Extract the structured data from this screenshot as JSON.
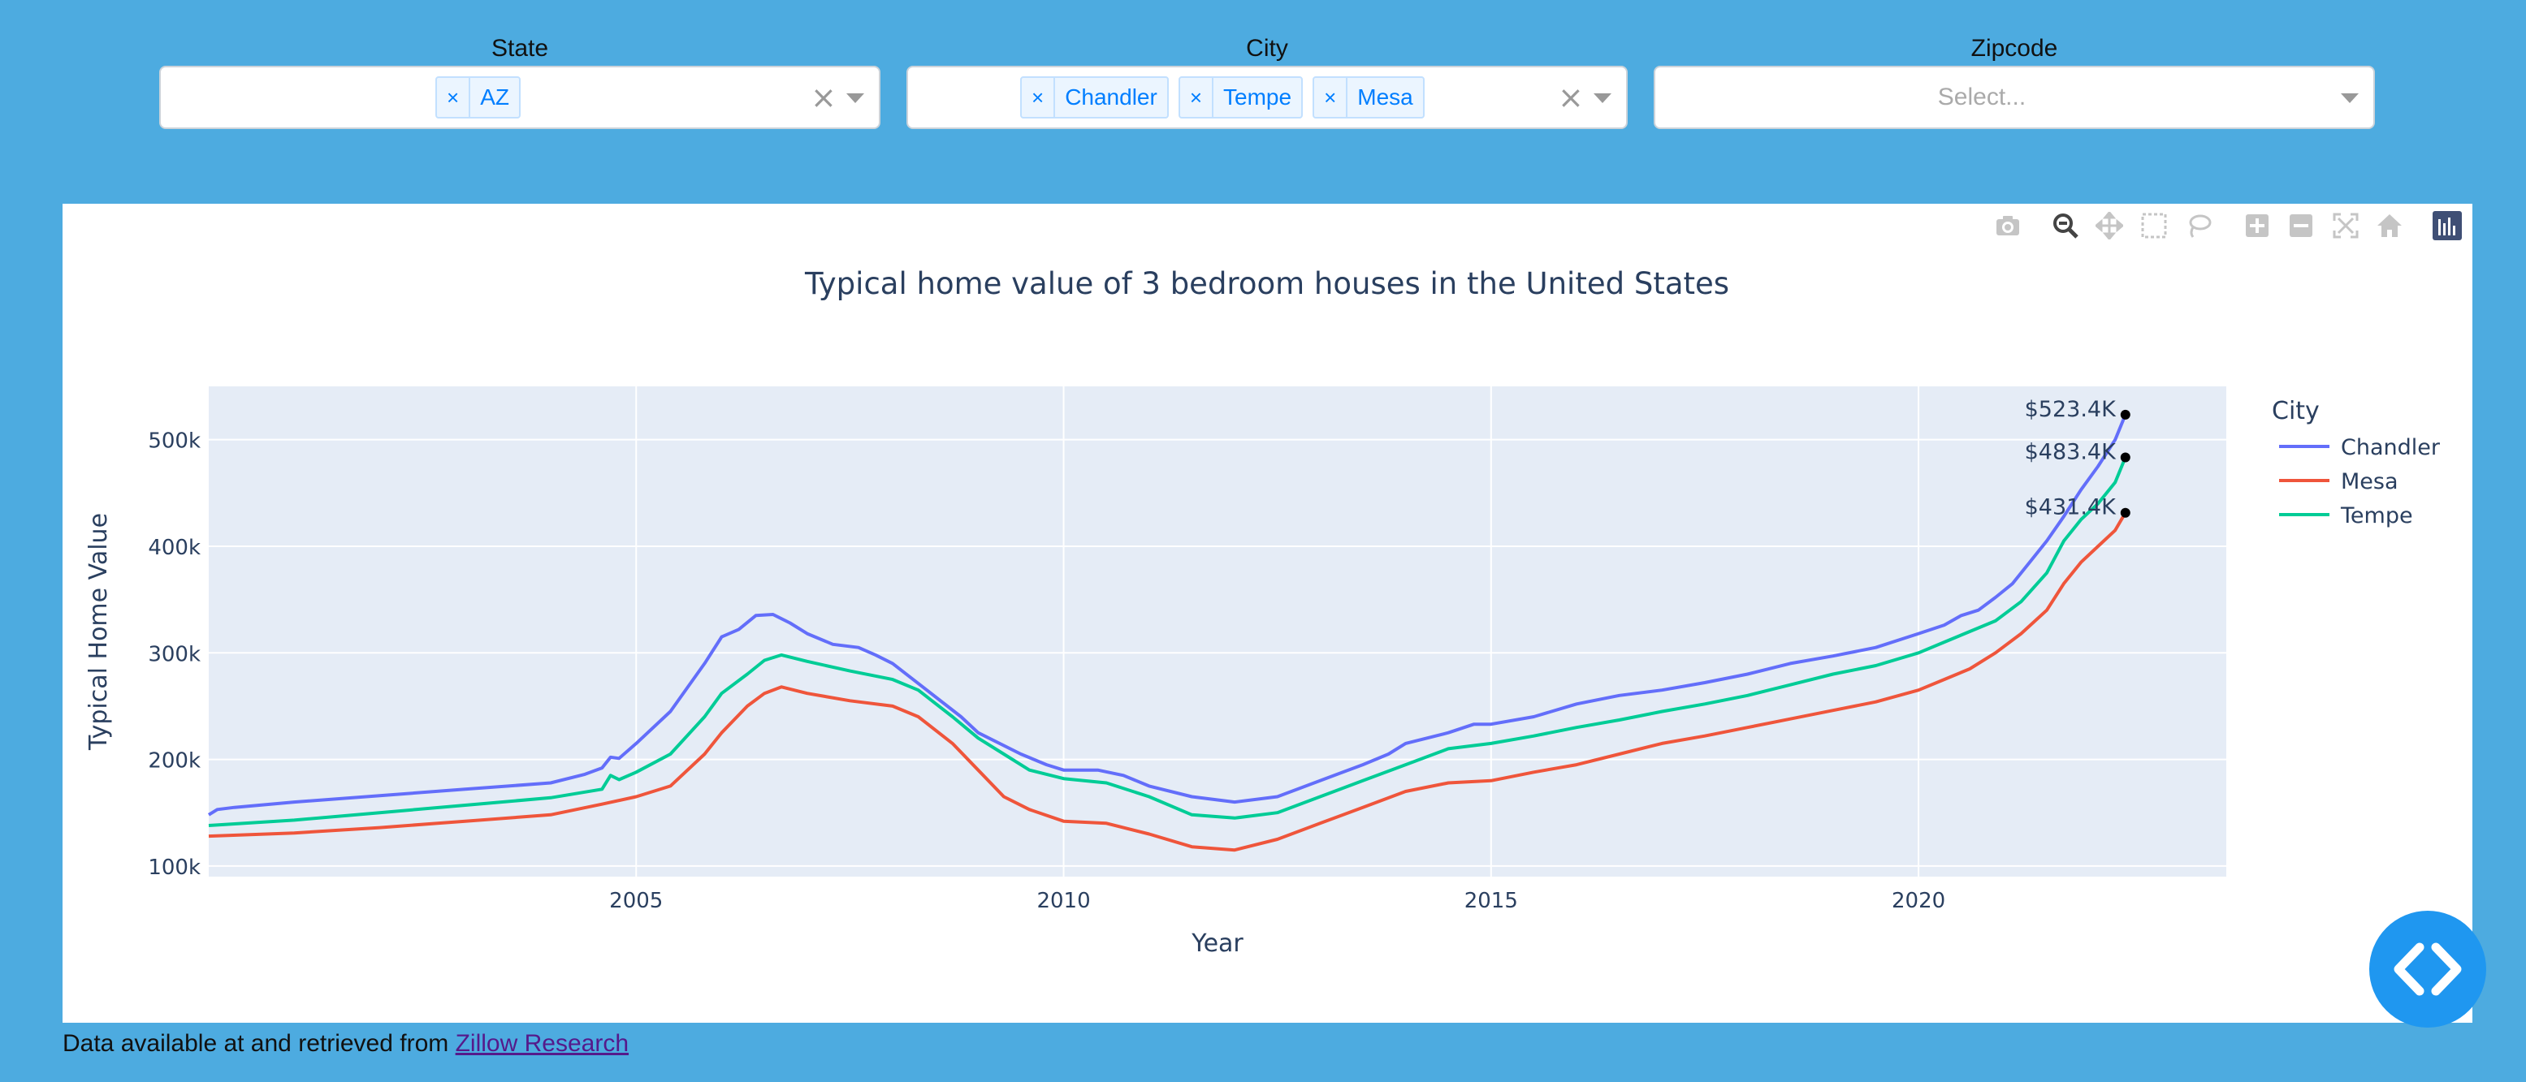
{
  "filters": {
    "state": {
      "label": "State",
      "chips": [
        "AZ"
      ],
      "remove_glyph": "×",
      "clear_glyph": "×"
    },
    "city": {
      "label": "City",
      "chips": [
        "Chandler",
        "Tempe",
        "Mesa"
      ],
      "remove_glyph": "×",
      "clear_glyph": "×"
    },
    "zipcode": {
      "label": "Zipcode",
      "placeholder": "Select..."
    }
  },
  "modebar": {
    "icons": [
      "camera-icon",
      "zoom-icon",
      "pan-icon",
      "box-select-icon",
      "lasso-select-icon",
      "zoom-in-icon",
      "zoom-out-icon",
      "autoscale-icon",
      "reset-axes-icon",
      "plotly-logo-icon"
    ],
    "active": "zoom-icon"
  },
  "chart_data": {
    "type": "line",
    "title": "Typical home value of 3 bedroom houses in the United States",
    "xlabel": "Year",
    "ylabel": "Typical Home Value",
    "xlim": [
      2000.0,
      2023.6
    ],
    "ylim": [
      90000,
      550000
    ],
    "x_ticks": [
      2005,
      2010,
      2015,
      2020
    ],
    "x_tick_labels": [
      "2005",
      "2010",
      "2015",
      "2020"
    ],
    "y_ticks": [
      100000,
      200000,
      300000,
      400000,
      500000
    ],
    "y_tick_labels": [
      "100k",
      "200k",
      "300k",
      "400k",
      "500k"
    ],
    "grid": true,
    "legend": {
      "title": "City",
      "position": "top-right"
    },
    "series": [
      {
        "name": "Chandler",
        "color": "#636efa",
        "x": [
          2000.0,
          2000.1,
          2000.3,
          2001,
          2002,
          2003,
          2004,
          2004.4,
          2004.6,
          2004.7,
          2004.8,
          2005,
          2005.4,
          2005.8,
          2006.0,
          2006.2,
          2006.4,
          2006.6,
          2006.8,
          2007,
          2007.3,
          2007.6,
          2007.8,
          2008,
          2008.4,
          2008.8,
          2009,
          2009.5,
          2009.8,
          2010,
          2010.4,
          2010.7,
          2011,
          2011.5,
          2012,
          2012.5,
          2013,
          2013.5,
          2013.8,
          2014,
          2014.5,
          2014.8,
          2015,
          2015.5,
          2016,
          2016.5,
          2017,
          2017.5,
          2018,
          2018.5,
          2019,
          2019.5,
          2020,
          2020.3,
          2020.5,
          2020.7,
          2020.9,
          2021.1,
          2021.3,
          2021.5,
          2021.7,
          2021.9,
          2022.1,
          2022.3,
          2022.42
        ],
        "y": [
          148000,
          153000,
          155000,
          160000,
          166000,
          172000,
          178000,
          186000,
          192000,
          202000,
          201000,
          215000,
          245000,
          290000,
          315000,
          322000,
          335000,
          336000,
          328000,
          318000,
          308000,
          305000,
          298000,
          290000,
          265000,
          240000,
          225000,
          205000,
          195000,
          190000,
          190000,
          185000,
          175000,
          165000,
          160000,
          165000,
          180000,
          195000,
          205000,
          215000,
          225000,
          233000,
          233000,
          240000,
          252000,
          260000,
          265000,
          272000,
          280000,
          290000,
          297000,
          305000,
          318000,
          326000,
          335000,
          340000,
          352000,
          365000,
          385000,
          405000,
          428000,
          453000,
          475000,
          500000,
          523400
        ]
      },
      {
        "name": "Mesa",
        "color": "#ef553b",
        "x": [
          2000.0,
          2001,
          2002,
          2003,
          2004,
          2004.6,
          2005,
          2005.4,
          2005.8,
          2006.0,
          2006.3,
          2006.5,
          2006.7,
          2007,
          2007.5,
          2008,
          2008.3,
          2008.7,
          2009,
          2009.3,
          2009.6,
          2010,
          2010.5,
          2011,
          2011.5,
          2012,
          2012.5,
          2013,
          2013.5,
          2014,
          2014.5,
          2015,
          2015.5,
          2016,
          2016.5,
          2017,
          2017.5,
          2018,
          2018.5,
          2019,
          2019.5,
          2020,
          2020.3,
          2020.6,
          2020.9,
          2021.2,
          2021.5,
          2021.7,
          2021.9,
          2022.1,
          2022.3,
          2022.42
        ],
        "y": [
          128000,
          131000,
          136000,
          142000,
          148000,
          158000,
          165000,
          175000,
          205000,
          225000,
          250000,
          262000,
          268000,
          262000,
          255000,
          250000,
          240000,
          215000,
          190000,
          165000,
          153000,
          142000,
          140000,
          130000,
          118000,
          115000,
          125000,
          140000,
          155000,
          170000,
          178000,
          180000,
          188000,
          195000,
          205000,
          215000,
          222000,
          230000,
          238000,
          246000,
          254000,
          265000,
          275000,
          285000,
          300000,
          318000,
          340000,
          365000,
          385000,
          400000,
          415000,
          431400
        ]
      },
      {
        "name": "Tempe",
        "color": "#00cc96",
        "x": [
          2000.0,
          2001,
          2002,
          2003,
          2004,
          2004.6,
          2004.7,
          2004.8,
          2005,
          2005.4,
          2005.8,
          2006.0,
          2006.3,
          2006.5,
          2006.7,
          2007,
          2007.5,
          2008,
          2008.3,
          2008.7,
          2009,
          2009.3,
          2009.6,
          2010,
          2010.5,
          2011,
          2011.5,
          2012,
          2012.5,
          2013,
          2013.5,
          2014,
          2014.5,
          2015,
          2015.5,
          2016,
          2016.5,
          2017,
          2017.5,
          2018,
          2018.5,
          2019,
          2019.5,
          2020,
          2020.3,
          2020.6,
          2020.9,
          2021.2,
          2021.5,
          2021.7,
          2021.9,
          2022.1,
          2022.3,
          2022.42
        ],
        "y": [
          138000,
          143000,
          150000,
          157000,
          164000,
          172000,
          185000,
          181000,
          188000,
          205000,
          240000,
          262000,
          280000,
          293000,
          298000,
          292000,
          283000,
          275000,
          265000,
          240000,
          220000,
          205000,
          190000,
          182000,
          178000,
          165000,
          148000,
          145000,
          150000,
          165000,
          180000,
          195000,
          210000,
          215000,
          222000,
          230000,
          237000,
          245000,
          252000,
          260000,
          270000,
          280000,
          288000,
          300000,
          310000,
          320000,
          330000,
          348000,
          375000,
          405000,
          425000,
          440000,
          460000,
          483400
        ]
      }
    ],
    "annotations": [
      {
        "series": "Chandler",
        "x": 2022.42,
        "y": 523400,
        "text": "$523.4K"
      },
      {
        "series": "Tempe",
        "x": 2022.42,
        "y": 483400,
        "text": "$483.4K"
      },
      {
        "series": "Mesa",
        "x": 2022.42,
        "y": 431400,
        "text": "$431.4K"
      }
    ]
  },
  "footer": {
    "text": "Data available at and retrieved from",
    "link_text": "Zillow Research"
  }
}
